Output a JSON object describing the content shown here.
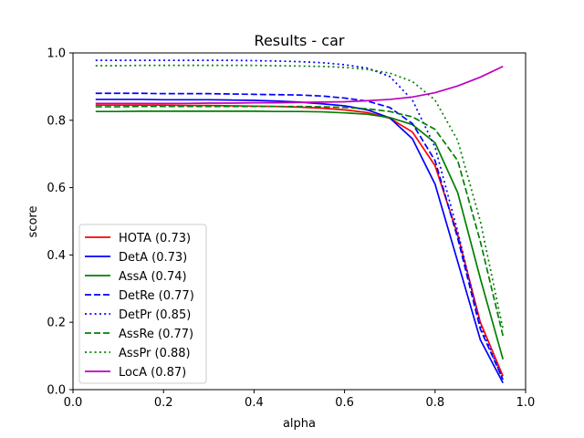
{
  "chart_data": {
    "type": "line",
    "title": "Results - car",
    "xlabel": "alpha",
    "ylabel": "score",
    "xlim": [
      0.0,
      1.0
    ],
    "ylim": [
      0.0,
      1.0
    ],
    "xticks": [
      "0.0",
      "0.2",
      "0.4",
      "0.6",
      "0.8",
      "1.0"
    ],
    "yticks": [
      "0.0",
      "0.2",
      "0.4",
      "0.6",
      "0.8",
      "1.0"
    ],
    "grid": false,
    "legend_position": "lower-left",
    "x": [
      0.05,
      0.1,
      0.15,
      0.2,
      0.25,
      0.3,
      0.35,
      0.4,
      0.45,
      0.5,
      0.55,
      0.6,
      0.65,
      0.7,
      0.75,
      0.8,
      0.85,
      0.9,
      0.95
    ],
    "series": [
      {
        "name": "HOTA (0.73)",
        "color": "#ff0000",
        "dash": "solid",
        "values": [
          0.845,
          0.845,
          0.845,
          0.845,
          0.844,
          0.844,
          0.843,
          0.842,
          0.841,
          0.839,
          0.836,
          0.831,
          0.823,
          0.806,
          0.765,
          0.665,
          0.46,
          0.2,
          0.04
        ]
      },
      {
        "name": "DetA (0.73)",
        "color": "#0000ff",
        "dash": "solid",
        "values": [
          0.862,
          0.862,
          0.862,
          0.861,
          0.861,
          0.861,
          0.86,
          0.859,
          0.857,
          0.854,
          0.849,
          0.843,
          0.831,
          0.807,
          0.745,
          0.61,
          0.38,
          0.148,
          0.02
        ]
      },
      {
        "name": "AssA (0.74)",
        "color": "#008000",
        "dash": "solid",
        "values": [
          0.826,
          0.826,
          0.827,
          0.827,
          0.827,
          0.827,
          0.827,
          0.827,
          0.826,
          0.826,
          0.825,
          0.822,
          0.818,
          0.808,
          0.787,
          0.733,
          0.585,
          0.33,
          0.09
        ]
      },
      {
        "name": "DetRe (0.77)",
        "color": "#0000ff",
        "dash": "dashed",
        "values": [
          0.88,
          0.88,
          0.88,
          0.879,
          0.879,
          0.879,
          0.878,
          0.877,
          0.876,
          0.875,
          0.872,
          0.866,
          0.857,
          0.838,
          0.79,
          0.68,
          0.45,
          0.18,
          0.03
        ]
      },
      {
        "name": "DetPr (0.85)",
        "color": "#0000ff",
        "dash": "dotted",
        "values": [
          0.978,
          0.978,
          0.978,
          0.978,
          0.978,
          0.978,
          0.978,
          0.977,
          0.976,
          0.974,
          0.971,
          0.965,
          0.955,
          0.93,
          0.86,
          0.72,
          0.47,
          0.19,
          0.03
        ]
      },
      {
        "name": "AssRe (0.77)",
        "color": "#008000",
        "dash": "dashed",
        "values": [
          0.84,
          0.84,
          0.841,
          0.841,
          0.841,
          0.841,
          0.841,
          0.841,
          0.841,
          0.841,
          0.84,
          0.838,
          0.834,
          0.826,
          0.81,
          0.773,
          0.68,
          0.44,
          0.16
        ]
      },
      {
        "name": "AssPr (0.88)",
        "color": "#008000",
        "dash": "dotted",
        "values": [
          0.962,
          0.962,
          0.963,
          0.963,
          0.963,
          0.963,
          0.963,
          0.963,
          0.962,
          0.961,
          0.96,
          0.957,
          0.951,
          0.94,
          0.915,
          0.86,
          0.74,
          0.5,
          0.18
        ]
      },
      {
        "name": "LocA (0.87)",
        "color": "#bf00bf",
        "dash": "solid",
        "values": [
          0.85,
          0.85,
          0.85,
          0.85,
          0.85,
          0.851,
          0.851,
          0.852,
          0.852,
          0.853,
          0.854,
          0.855,
          0.858,
          0.862,
          0.869,
          0.882,
          0.902,
          0.928,
          0.96
        ]
      }
    ]
  }
}
